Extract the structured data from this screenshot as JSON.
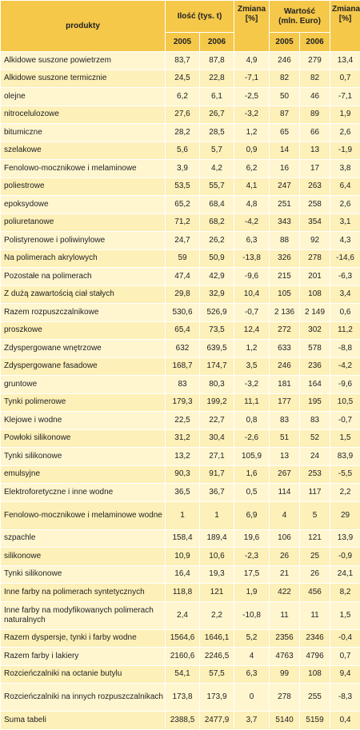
{
  "header": {
    "produkty": "produkty",
    "ilosc": "Ilość (tys. t)",
    "wartosc_line1": "Wartość",
    "wartosc_line2": "(mln. Euro)",
    "zmiana": "Zmiana",
    "zmiana_unit": "[%]",
    "year1": "2005",
    "year2": "2006"
  },
  "rows": [
    {
      "name": "Alkidowe suszone powietrzem",
      "q2005": "83,7",
      "q2006": "87,8",
      "qchg": "4,9",
      "v2005": "246",
      "v2006": "279",
      "vchg": "13,4"
    },
    {
      "name": "Alkidowe suszone termicznie",
      "q2005": "24,5",
      "q2006": "22,8",
      "qchg": "-7,1",
      "v2005": "82",
      "v2006": "82",
      "vchg": "0,7"
    },
    {
      "name": "olejne",
      "q2005": "6,2",
      "q2006": "6,1",
      "qchg": "-2,5",
      "v2005": "50",
      "v2006": "46",
      "vchg": "-7,1"
    },
    {
      "name": "nitrocelulozowe",
      "q2005": "27,6",
      "q2006": "26,7",
      "qchg": "-3,2",
      "v2005": "87",
      "v2006": "89",
      "vchg": "1,9"
    },
    {
      "name": "bitumiczne",
      "q2005": "28,2",
      "q2006": "28,5",
      "qchg": "1,2",
      "v2005": "65",
      "v2006": "66",
      "vchg": "2,6"
    },
    {
      "name": "szelakowe",
      "q2005": "5,6",
      "q2006": "5,7",
      "qchg": "0,9",
      "v2005": "14",
      "v2006": "13",
      "vchg": "-1,9"
    },
    {
      "name": "Fenolowo-mocznikowe i melaminowe",
      "q2005": "3,9",
      "q2006": "4,2",
      "qchg": "6,2",
      "v2005": "16",
      "v2006": "17",
      "vchg": "3,8"
    },
    {
      "name": "poliestrowe",
      "q2005": "53,5",
      "q2006": "55,7",
      "qchg": "4,1",
      "v2005": "247",
      "v2006": "263",
      "vchg": "6,4"
    },
    {
      "name": "epoksydowe",
      "q2005": "65,2",
      "q2006": "68,4",
      "qchg": "4,8",
      "v2005": "251",
      "v2006": "258",
      "vchg": "2,6"
    },
    {
      "name": "poliuretanowe",
      "q2005": "71,2",
      "q2006": "68,2",
      "qchg": "-4,2",
      "v2005": "343",
      "v2006": "354",
      "vchg": "3,1"
    },
    {
      "name": "Polistyrenowe i poliwinylowe",
      "q2005": "24,7",
      "q2006": "26,2",
      "qchg": "6,3",
      "v2005": "88",
      "v2006": "92",
      "vchg": "4,3"
    },
    {
      "name": "Na polimerach akrylowych",
      "q2005": "59",
      "q2006": "50,9",
      "qchg": "-13,8",
      "v2005": "326",
      "v2006": "278",
      "vchg": "-14,6"
    },
    {
      "name": "Pozostałe na polimerach",
      "q2005": "47,4",
      "q2006": "42,9",
      "qchg": "-9,6",
      "v2005": "215",
      "v2006": "201",
      "vchg": "-6,3"
    },
    {
      "name": "Z dużą zawartością ciał stałych",
      "q2005": "29,8",
      "q2006": "32,9",
      "qchg": "10,4",
      "v2005": "105",
      "v2006": "108",
      "vchg": "3,4"
    },
    {
      "name": "Razem rozpuszczalnikowe",
      "q2005": "530,6",
      "q2006": "526,9",
      "qchg": "-0,7",
      "v2005": "2 136",
      "v2006": "2 149",
      "vchg": "0,6"
    },
    {
      "name": "proszkowe",
      "q2005": "65,4",
      "q2006": "73,5",
      "qchg": "12,4",
      "v2005": "272",
      "v2006": "302",
      "vchg": "11,2"
    },
    {
      "name": "Zdyspergowane wnętrzowe",
      "q2005": "632",
      "q2006": "639,5",
      "qchg": "1,2",
      "v2005": "633",
      "v2006": "578",
      "vchg": "-8,8"
    },
    {
      "name": "Zdyspergowane fasadowe",
      "q2005": "168,7",
      "q2006": "174,7",
      "qchg": "3,5",
      "v2005": "246",
      "v2006": "236",
      "vchg": "-4,2"
    },
    {
      "name": "gruntowe",
      "q2005": "83",
      "q2006": "80,3",
      "qchg": "-3,2",
      "v2005": "181",
      "v2006": "164",
      "vchg": "-9,6"
    },
    {
      "name": "Tynki polimerowe",
      "q2005": "179,3",
      "q2006": "199,2",
      "qchg": "11,1",
      "v2005": "177",
      "v2006": "195",
      "vchg": "10,5"
    },
    {
      "name": "Klejowe i wodne",
      "q2005": "22,5",
      "q2006": "22,7",
      "qchg": "0,8",
      "v2005": "83",
      "v2006": "83",
      "vchg": "-0,7"
    },
    {
      "name": "Powłoki silikonowe",
      "q2005": "31,2",
      "q2006": "30,4",
      "qchg": "-2,6",
      "v2005": "51",
      "v2006": "52",
      "vchg": "1,5"
    },
    {
      "name": "Tynki silikonowe",
      "q2005": "13,2",
      "q2006": "27,1",
      "qchg": "105,9",
      "v2005": "13",
      "v2006": "24",
      "vchg": "83,9"
    },
    {
      "name": "emulsyjne",
      "q2005": "90,3",
      "q2006": "91,7",
      "qchg": "1,6",
      "v2005": "267",
      "v2006": "253",
      "vchg": "-5,5"
    },
    {
      "name": "Elektroforetyczne i inne wodne",
      "q2005": "36,5",
      "q2006": "36,7",
      "qchg": "0,5",
      "v2005": "114",
      "v2006": "117",
      "vchg": "2,2"
    },
    {
      "name": "Fenolowo-mocznikowe i melaminowe wodne",
      "q2005": "1",
      "q2006": "1",
      "qchg": "6,9",
      "v2005": "4",
      "v2006": "5",
      "vchg": "29",
      "tall": true
    },
    {
      "name": "szpachle",
      "q2005": "158,4",
      "q2006": "189,4",
      "qchg": "19,6",
      "v2005": "106",
      "v2006": "121",
      "vchg": "13,9"
    },
    {
      "name": "silikonowe",
      "q2005": "10,9",
      "q2006": "10,6",
      "qchg": "-2,3",
      "v2005": "26",
      "v2006": "25",
      "vchg": "-0,9"
    },
    {
      "name": "Tynki silikonowe",
      "q2005": "16,4",
      "q2006": "19,3",
      "qchg": "17,5",
      "v2005": "21",
      "v2006": "26",
      "vchg": "24,1"
    },
    {
      "name": "Inne farby na polimerach syntetycznych",
      "q2005": "118,8",
      "q2006": "121",
      "qchg": "1,9",
      "v2005": "422",
      "v2006": "456",
      "vchg": "8,2"
    },
    {
      "name": "Inne farby na modyfikowanych polimerach naturalnych",
      "q2005": "2,4",
      "q2006": "2,2",
      "qchg": "-10,8",
      "v2005": "11",
      "v2006": "11",
      "vchg": "1,5",
      "tall": true
    },
    {
      "name": "Razem dyspersje, tynki i farby wodne",
      "q2005": "1564,6",
      "q2006": "1646,1",
      "qchg": "5,2",
      "v2005": "2356",
      "v2006": "2346",
      "vchg": "-0,4"
    },
    {
      "name": "Razem farby i lakiery",
      "q2005": "2160,6",
      "q2006": "2246,5",
      "qchg": "4",
      "v2005": "4763",
      "v2006": "4796",
      "vchg": "0,7"
    },
    {
      "name": "Rozcieńczalniki na octanie butylu",
      "q2005": "54,1",
      "q2006": "57,5",
      "qchg": "6,3",
      "v2005": "99",
      "v2006": "108",
      "vchg": "9,4"
    },
    {
      "name": "Rozcieńczalniki na innych rozpuszczalnikach",
      "q2005": "173,8",
      "q2006": "173,9",
      "qchg": "0",
      "v2005": "278",
      "v2006": "255",
      "vchg": "-8,3",
      "tall": true
    },
    {
      "name": "Suma tabeli",
      "q2005": "2388,5",
      "q2006": "2477,9",
      "qchg": "3,7",
      "v2005": "5140",
      "v2006": "5159",
      "vchg": "0,4"
    }
  ]
}
